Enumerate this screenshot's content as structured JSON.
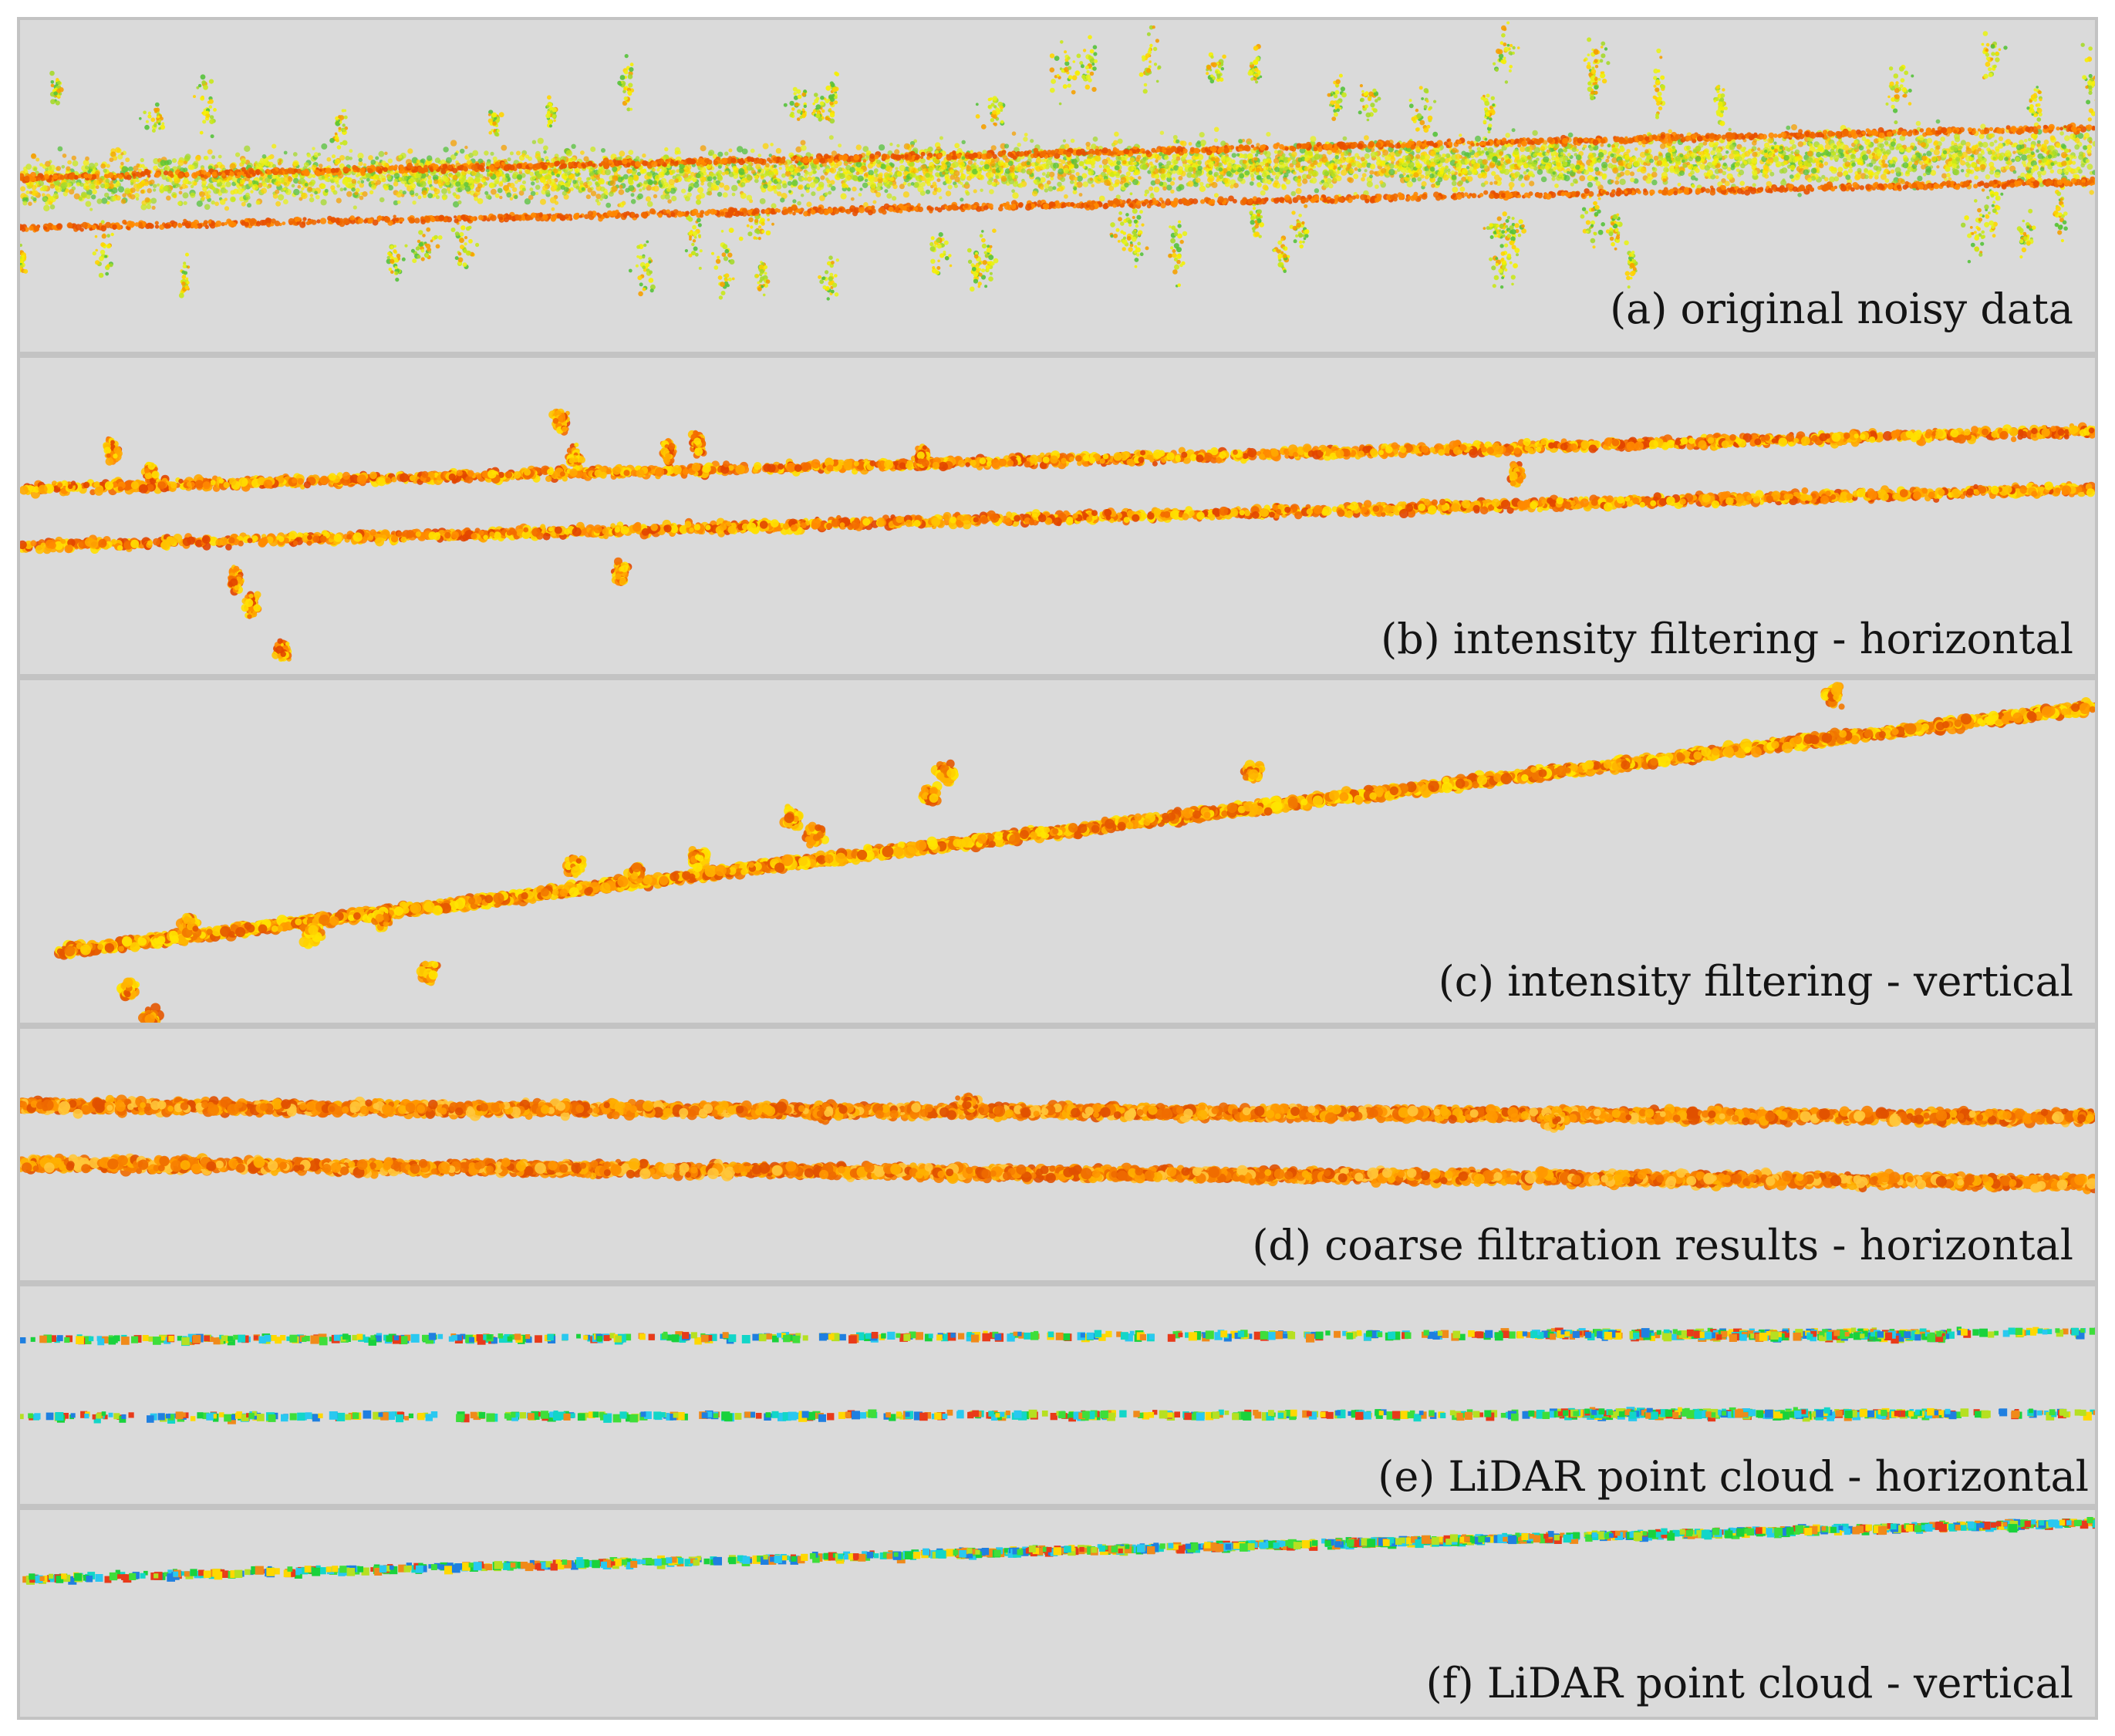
{
  "figure": {
    "panels": [
      {
        "id": "a",
        "caption": "(a) original noisy data",
        "style": "noisy",
        "palette": [
          "#e8f21a",
          "#f6f000",
          "#c9e81a",
          "#a6d92a",
          "#55c23a",
          "#ffd400",
          "#f5a000"
        ],
        "band_color": "#f06a00"
      },
      {
        "id": "b",
        "caption": "(b) intensity filtering - horizontal",
        "style": "filtered",
        "palette": [
          "#ffe000",
          "#ffc400",
          "#ffa800",
          "#ff8a00",
          "#f36a00",
          "#e24500"
        ]
      },
      {
        "id": "c",
        "caption": "(c) intensity filtering - vertical",
        "style": "filtered",
        "palette": [
          "#ffe400",
          "#ffd000",
          "#ffb400",
          "#ff9a00",
          "#f27800",
          "#e45600"
        ]
      },
      {
        "id": "d",
        "caption": "(d) coarse filtration results - horizontal",
        "style": "coarse",
        "palette": [
          "#ffb000",
          "#ff9800",
          "#f78000",
          "#ee6a00",
          "#e05000",
          "#ffc63a"
        ]
      },
      {
        "id": "e",
        "caption": "(e) LiDAR point cloud - horizontal",
        "style": "lidar",
        "palette": [
          "#19d23c",
          "#3ede3a",
          "#12d6c8",
          "#29c8f0",
          "#1f7fe0",
          "#b6e021",
          "#ffd800",
          "#f08a1a",
          "#e83a1a"
        ]
      },
      {
        "id": "f",
        "caption": "(f) LiDAR point cloud - vertical",
        "style": "lidar",
        "palette": [
          "#19d23c",
          "#3ede3a",
          "#12d6c8",
          "#29c8f0",
          "#1f7fe0",
          "#b6e021",
          "#ffd800",
          "#f08a1a",
          "#e83a1a"
        ]
      }
    ]
  }
}
